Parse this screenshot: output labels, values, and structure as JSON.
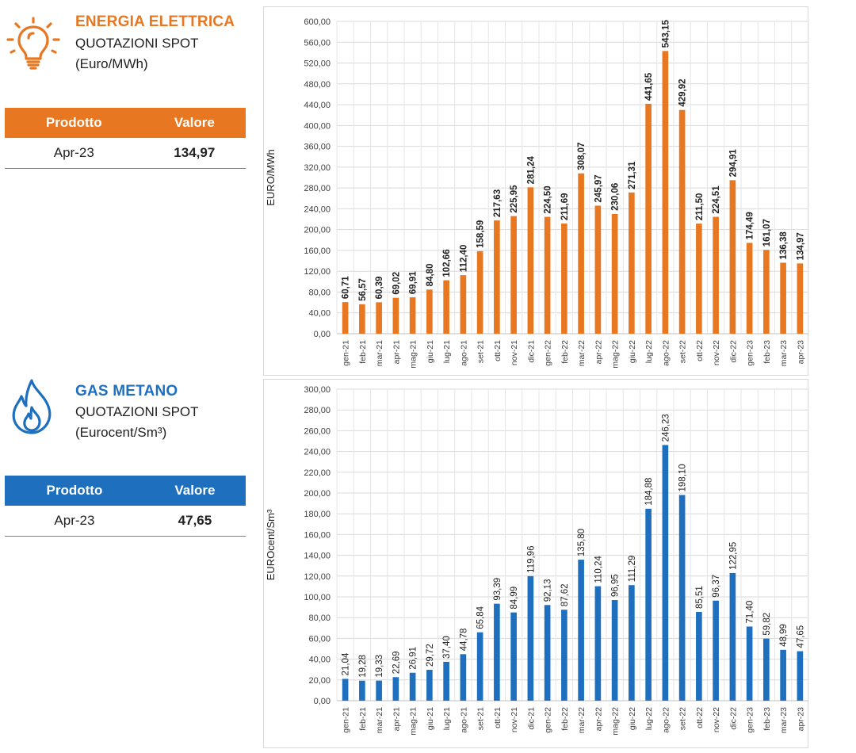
{
  "electricity": {
    "title": "ENERGIA ELETTRICA",
    "subtitle": "QUOTAZIONI SPOT",
    "unit": "(Euro/MWh)",
    "icon": "lightbulb-icon",
    "accent": "#e87722",
    "table": {
      "col1": "Prodotto",
      "col2": "Valore",
      "product": "Apr-23",
      "value": "134,97"
    }
  },
  "gas": {
    "title": "GAS METANO",
    "subtitle": "QUOTAZIONI SPOT",
    "unit": "(Eurocent/Sm³)",
    "icon": "flame-icon",
    "accent": "#1f6fbf",
    "table": {
      "col1": "Prodotto",
      "col2": "Valore",
      "product": "Apr-23",
      "value": "47,65"
    }
  },
  "chart_data": [
    {
      "type": "bar",
      "ylabel": "EURO/MWh",
      "ylim": [
        0,
        600
      ],
      "ytick_step": 40,
      "color": "#e87722",
      "label_weight": "bold",
      "categories": [
        "gen-21",
        "feb-21",
        "mar-21",
        "apr-21",
        "mag-21",
        "giu-21",
        "lug-21",
        "ago-21",
        "set-21",
        "ott-21",
        "nov-21",
        "dic-21",
        "gen-22",
        "feb-22",
        "mar-22",
        "apr-22",
        "mag-22",
        "giu-22",
        "lug-22",
        "ago-22",
        "set-22",
        "ott-22",
        "nov-22",
        "dic-22",
        "gen-23",
        "feb-23",
        "mar-23",
        "apr-23"
      ],
      "values": [
        60.71,
        56.57,
        60.39,
        69.02,
        69.91,
        84.8,
        102.66,
        112.4,
        158.59,
        217.63,
        225.95,
        281.24,
        224.5,
        211.69,
        308.07,
        245.97,
        230.06,
        271.31,
        441.65,
        543.15,
        429.92,
        211.5,
        224.51,
        294.91,
        174.49,
        161.07,
        136.38,
        134.97
      ],
      "grid": true,
      "legend": "none"
    },
    {
      "type": "bar",
      "ylabel": "EUROcent/Sm³",
      "ylim": [
        0,
        300
      ],
      "ytick_step": 20,
      "color": "#1f6fbf",
      "label_weight": "normal",
      "categories": [
        "gen-21",
        "feb-21",
        "mar-21",
        "apr-21",
        "mag-21",
        "giu-21",
        "lug-21",
        "ago-21",
        "set-21",
        "ott-21",
        "nov-21",
        "dic-21",
        "gen-22",
        "feb-22",
        "mar-22",
        "apr-22",
        "mag-22",
        "giu-22",
        "lug-22",
        "ago-22",
        "set-22",
        "ott-22",
        "nov-22",
        "dic-22",
        "gen-23",
        "feb-23",
        "mar-23",
        "apr-23"
      ],
      "values": [
        21.04,
        19.28,
        19.33,
        22.69,
        26.91,
        29.72,
        37.4,
        44.78,
        65.84,
        93.39,
        84.99,
        119.96,
        92.13,
        87.62,
        135.8,
        110.24,
        96.95,
        111.29,
        184.88,
        246.23,
        198.1,
        85.51,
        96.37,
        122.95,
        71.4,
        59.82,
        48.99,
        47.65
      ],
      "grid": true,
      "legend": "none"
    }
  ]
}
